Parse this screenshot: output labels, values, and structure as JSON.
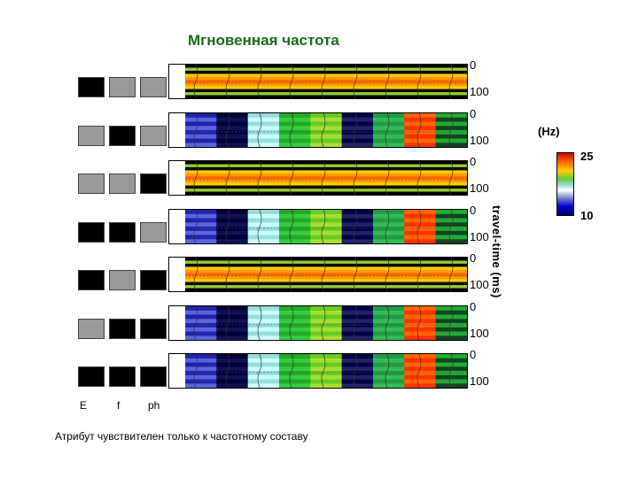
{
  "title": "Мгновенная частота",
  "rows": [
    {
      "top": "0",
      "bottom": "100",
      "pattern": "uniform",
      "blocks": [
        "black",
        "gray",
        "gray"
      ]
    },
    {
      "top": "0",
      "bottom": "100",
      "pattern": "spectral",
      "blocks": [
        "gray",
        "black",
        "gray"
      ]
    },
    {
      "top": "0",
      "bottom": "100",
      "pattern": "uniform",
      "blocks": [
        "gray",
        "gray",
        "black"
      ]
    },
    {
      "top": "0",
      "bottom": "100",
      "pattern": "spectral",
      "blocks": [
        "black",
        "black",
        "gray"
      ]
    },
    {
      "top": "0",
      "bottom": "100",
      "pattern": "uniform",
      "blocks": [
        "black",
        "gray",
        "black"
      ]
    },
    {
      "top": "0",
      "bottom": "100",
      "pattern": "spectral",
      "blocks": [
        "gray",
        "black",
        "black"
      ]
    },
    {
      "top": "0",
      "bottom": "100",
      "pattern": "spectral",
      "blocks": [
        "black",
        "black",
        "black"
      ]
    }
  ],
  "axis_label": "travel-time (ms)",
  "colorbar": {
    "unit": "(Hz)",
    "max": "25",
    "min": "10"
  },
  "column_labels": [
    "E",
    "f",
    "ph"
  ],
  "caption": "Атрибут чувствителен только к частотному составу",
  "colors": {
    "black": "#000000",
    "gray": "#999999",
    "title": "#1a6b1a"
  }
}
